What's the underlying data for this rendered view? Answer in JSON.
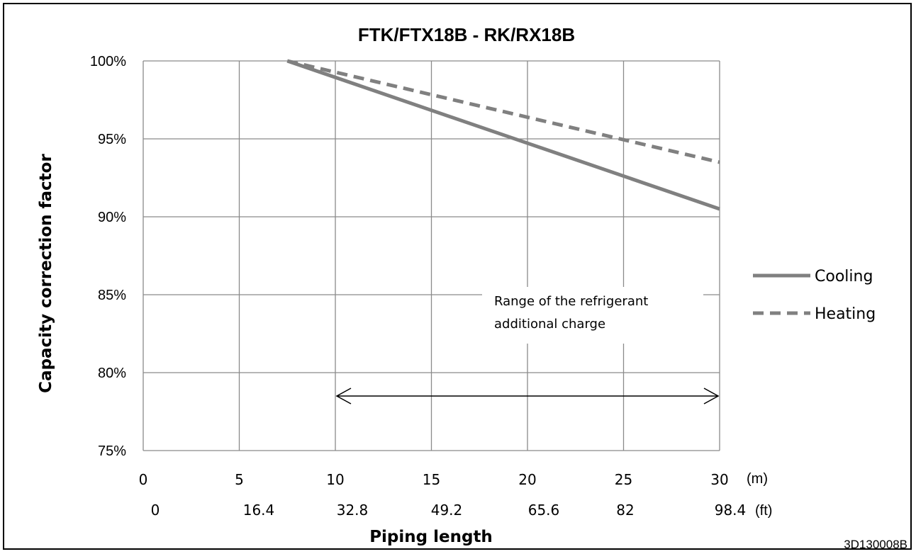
{
  "chart_data": {
    "type": "line",
    "title": "FTK/FTX18B - RK/RX18B",
    "xlabel": "Piping length",
    "ylabel": "Capacity correction factor",
    "x_unit_primary": "(m)",
    "x_unit_secondary": "(ft)",
    "x_ticks_m": [
      "0",
      "5",
      "10",
      "15",
      "20",
      "25",
      "30"
    ],
    "x_ticks_ft": [
      "0",
      "16.4",
      "32.8",
      "49.2",
      "65.6",
      "82",
      "98.4"
    ],
    "x_tick_values": [
      0,
      5,
      10,
      15,
      20,
      25,
      30
    ],
    "y_ticks": [
      "100%",
      "95%",
      "90%",
      "85%",
      "80%",
      "75%"
    ],
    "y_tick_values": [
      100,
      95,
      90,
      85,
      80,
      75
    ],
    "xlim": [
      0,
      30
    ],
    "ylim": [
      75,
      100
    ],
    "grid": true,
    "legend_position": "right",
    "series": [
      {
        "name": "Cooling",
        "style": "solid",
        "color": "#808080",
        "points": [
          [
            7.5,
            100
          ],
          [
            30,
            90.5
          ]
        ]
      },
      {
        "name": "Heating",
        "style": "dashed",
        "color": "#808080",
        "points": [
          [
            7.5,
            100
          ],
          [
            30,
            93.5
          ]
        ]
      }
    ],
    "annotation": {
      "lines": [
        "Range of the refrigerant",
        "additional charge"
      ],
      "arrow_from_x": 10,
      "arrow_to_x": 30,
      "arrow_y": 78.5
    }
  },
  "figure_code": "3D130008B"
}
